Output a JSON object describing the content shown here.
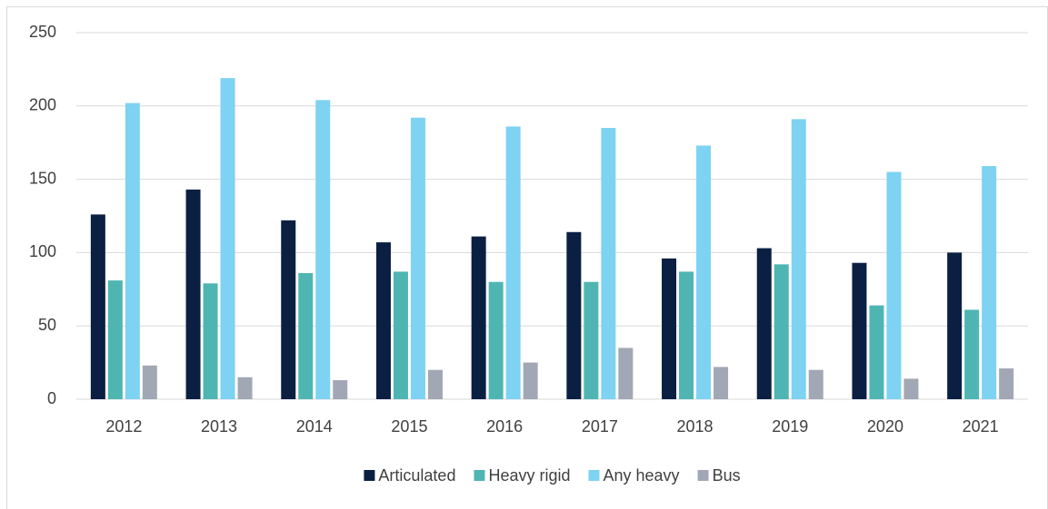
{
  "chart_data": {
    "type": "bar",
    "categories": [
      "2012",
      "2013",
      "2014",
      "2015",
      "2016",
      "2017",
      "2018",
      "2019",
      "2020",
      "2021"
    ],
    "series": [
      {
        "name": "Articulated",
        "color": "#0b1f43",
        "values": [
          126,
          143,
          122,
          107,
          111,
          114,
          96,
          103,
          93,
          100
        ]
      },
      {
        "name": "Heavy rigid",
        "color": "#4fb5b3",
        "values": [
          81,
          79,
          86,
          87,
          80,
          80,
          87,
          92,
          64,
          61
        ]
      },
      {
        "name": "Any heavy",
        "color": "#7ed2f2",
        "values": [
          202,
          219,
          204,
          192,
          186,
          185,
          173,
          191,
          155,
          159
        ]
      },
      {
        "name": "Bus",
        "color": "#a2a7b5",
        "values": [
          23,
          15,
          13,
          20,
          25,
          35,
          22,
          20,
          14,
          21
        ]
      }
    ],
    "ylim": [
      0,
      250
    ],
    "yticks": [
      0,
      50,
      100,
      150,
      200,
      250
    ],
    "grid": true,
    "legend": "bottom"
  }
}
